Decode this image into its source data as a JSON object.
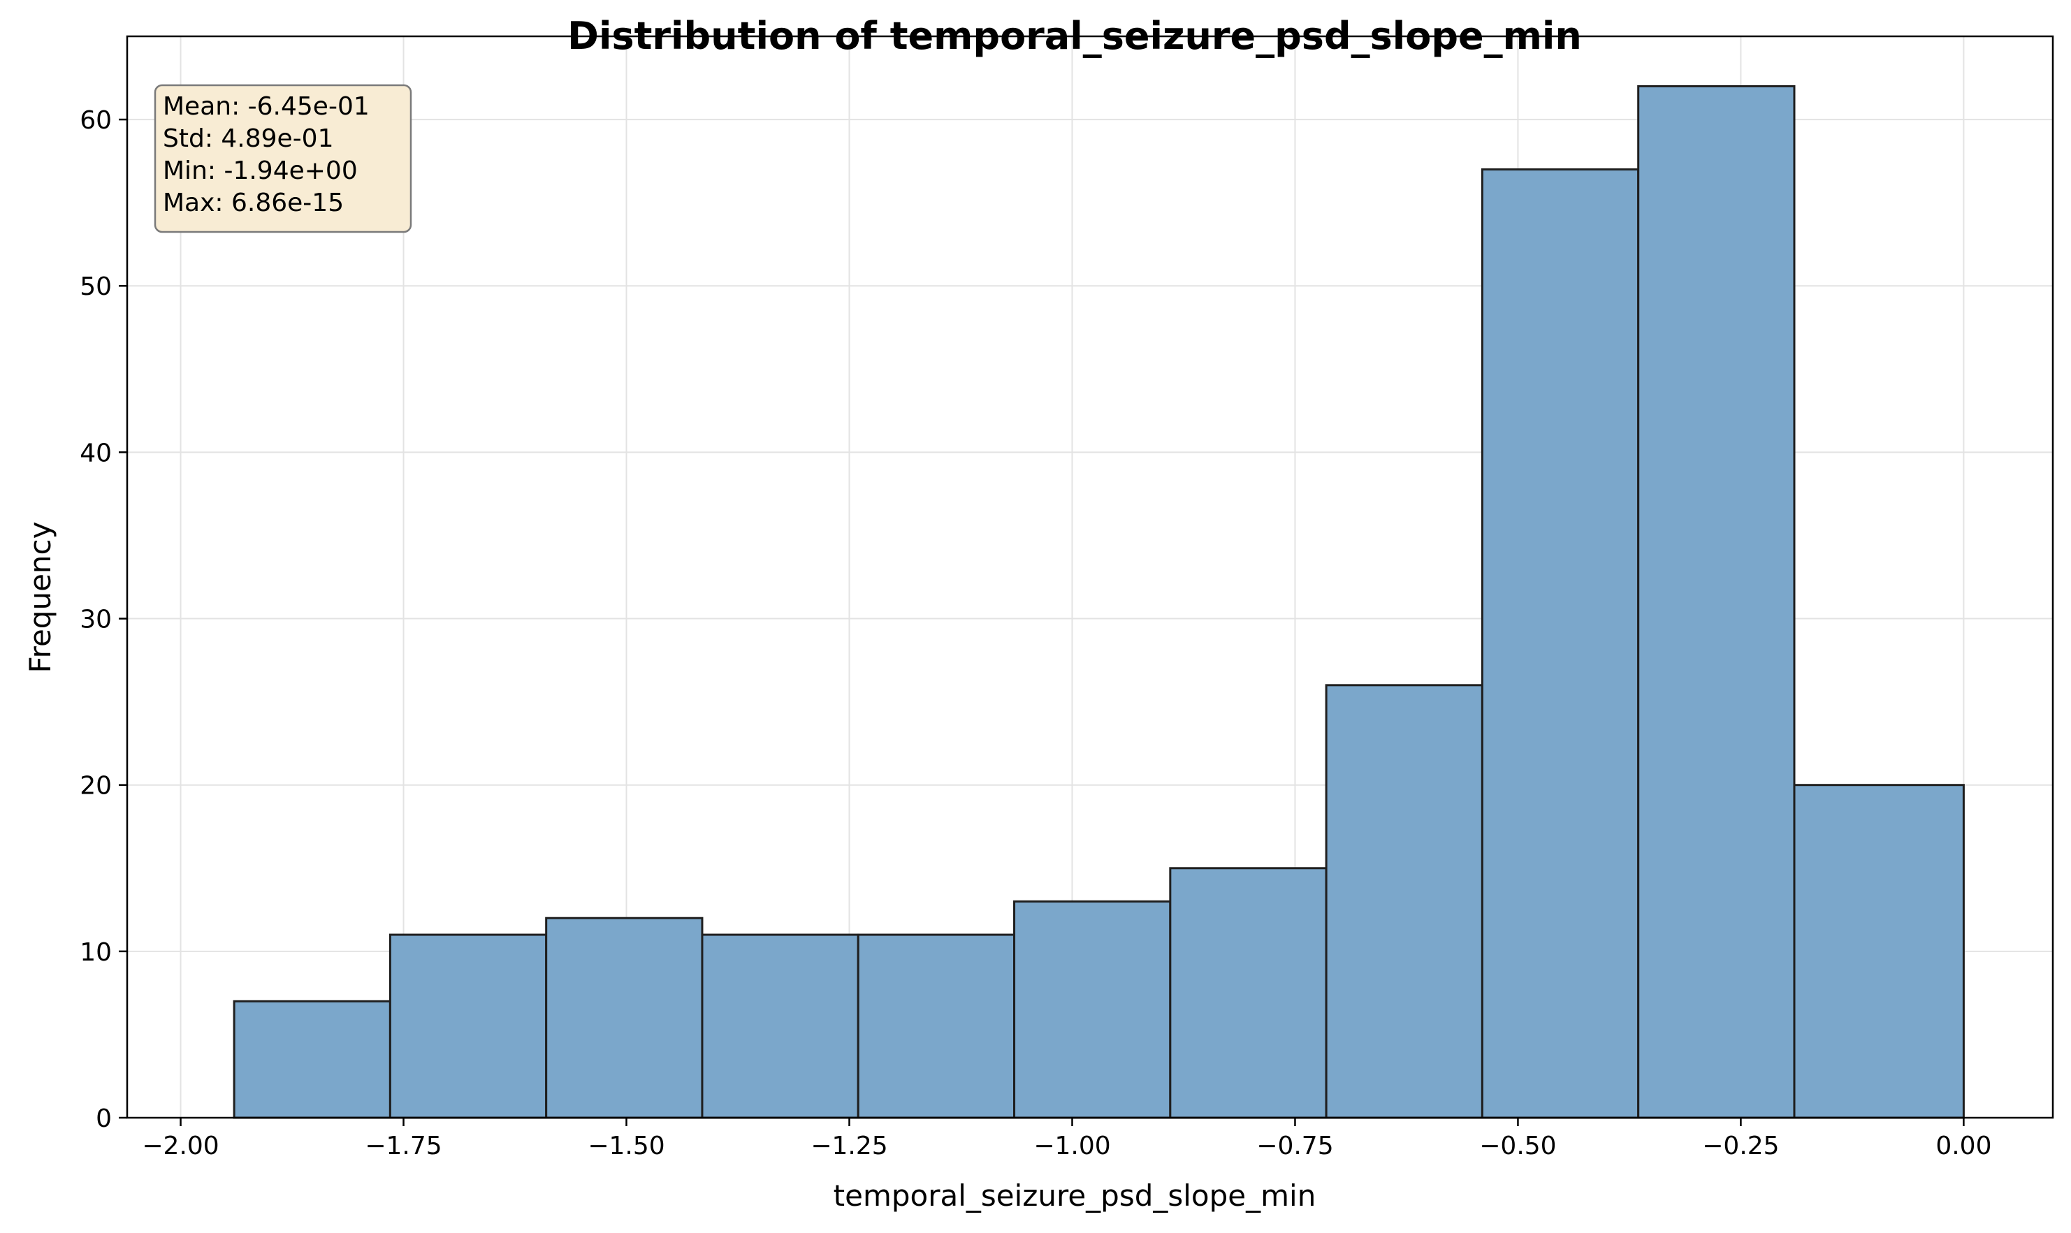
{
  "chart_data": {
    "type": "bar",
    "title": "Distribution of temporal_seizure_psd_slope_min",
    "xlabel": "temporal_seizure_psd_slope_min",
    "ylabel": "Frequency",
    "xlim": [
      -2.06,
      0.1
    ],
    "ylim": [
      0,
      65
    ],
    "grid": true,
    "bins": [
      {
        "x0": -1.94,
        "x1": -1.765,
        "count": 7
      },
      {
        "x0": -1.765,
        "x1": -1.59,
        "count": 11
      },
      {
        "x0": -1.59,
        "x1": -1.415,
        "count": 12
      },
      {
        "x0": -1.415,
        "x1": -1.24,
        "count": 11
      },
      {
        "x0": -1.24,
        "x1": -1.065,
        "count": 11
      },
      {
        "x0": -1.065,
        "x1": -0.89,
        "count": 13
      },
      {
        "x0": -0.89,
        "x1": -0.715,
        "count": 15
      },
      {
        "x0": -0.715,
        "x1": -0.54,
        "count": 26
      },
      {
        "x0": -0.54,
        "x1": -0.365,
        "count": 57
      },
      {
        "x0": -0.365,
        "x1": -0.19,
        "count": 62
      },
      {
        "x0": -0.19,
        "x1": 0.0,
        "count": 20
      }
    ],
    "x_ticks": [
      {
        "value": -2.0,
        "label": "−2.00"
      },
      {
        "value": -1.75,
        "label": "−1.75"
      },
      {
        "value": -1.5,
        "label": "−1.50"
      },
      {
        "value": -1.25,
        "label": "−1.25"
      },
      {
        "value": -1.0,
        "label": "−1.00"
      },
      {
        "value": -0.75,
        "label": "−0.75"
      },
      {
        "value": -0.5,
        "label": "−0.50"
      },
      {
        "value": -0.25,
        "label": "−0.25"
      },
      {
        "value": 0.0,
        "label": "0.00"
      }
    ],
    "y_ticks": [
      {
        "value": 0,
        "label": "0"
      },
      {
        "value": 10,
        "label": "10"
      },
      {
        "value": 20,
        "label": "20"
      },
      {
        "value": 30,
        "label": "30"
      },
      {
        "value": 40,
        "label": "40"
      },
      {
        "value": 50,
        "label": "50"
      },
      {
        "value": 60,
        "label": "60"
      }
    ],
    "stats_box": {
      "lines": [
        "Mean: -6.45e-01",
        "Std: 4.89e-01",
        "Min: -1.94e+00",
        "Max: 6.86e-15"
      ],
      "placement": "top-left"
    },
    "colors": {
      "bar_fill": "#7ba7cb",
      "bar_edge": "#1f1f1f",
      "grid": "#e3e3e3",
      "stats_fill": "#f8ecd4",
      "stats_edge": "#7a7a7a"
    }
  }
}
